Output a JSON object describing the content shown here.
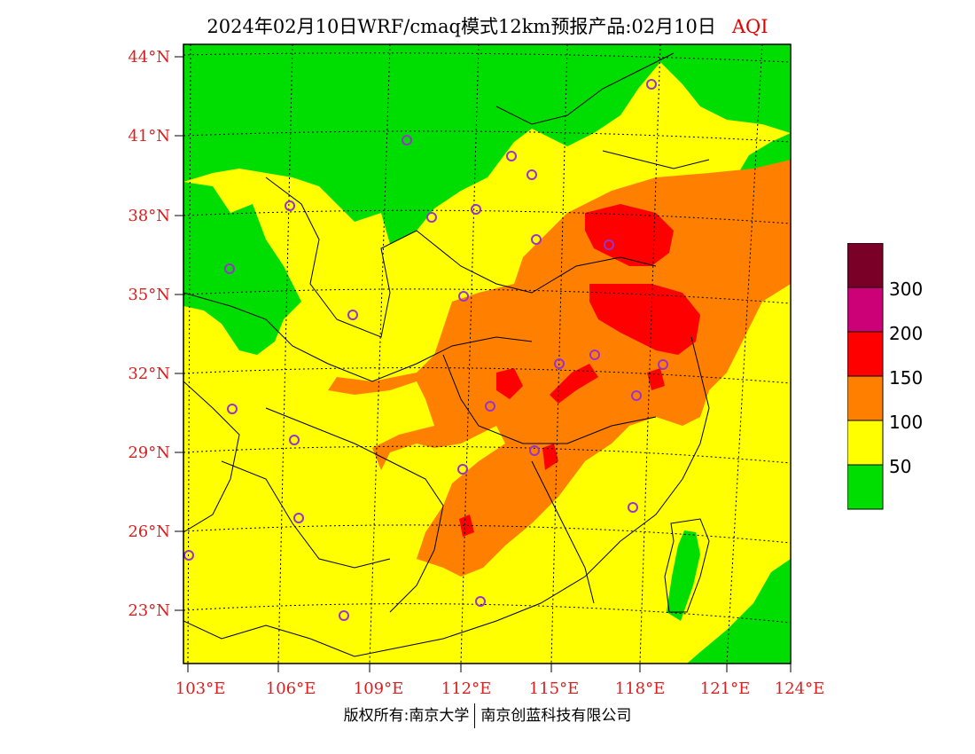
{
  "title": {
    "main": "2024年02月10日WRF/cmaq模式12km预报产品:02月10日",
    "variable": "AQI"
  },
  "axes": {
    "lat_labels": [
      "44°N",
      "41°N",
      "38°N",
      "35°N",
      "32°N",
      "29°N",
      "26°N",
      "23°N"
    ],
    "lon_labels": [
      "103°E",
      "106°E",
      "109°E",
      "112°E",
      "115°E",
      "118°E",
      "121°E",
      "124°E"
    ]
  },
  "legend": {
    "colors": [
      "#00dd00",
      "#ffff00",
      "#ff8000",
      "#ff0000",
      "#cc0077",
      "#7a0028"
    ],
    "labels": [
      "50",
      "100",
      "150",
      "200",
      "300"
    ]
  },
  "copyright": {
    "left": "版权所有:南京大学",
    "right": "南京创蓝科技有限公司"
  },
  "colors": {
    "land_background": "#ffff00",
    "good": "#00dd00",
    "moderate": "#ff8000",
    "unhealthy": "#ff0000",
    "city_marker": "#9933cc",
    "axis_label": "#d82020"
  }
}
